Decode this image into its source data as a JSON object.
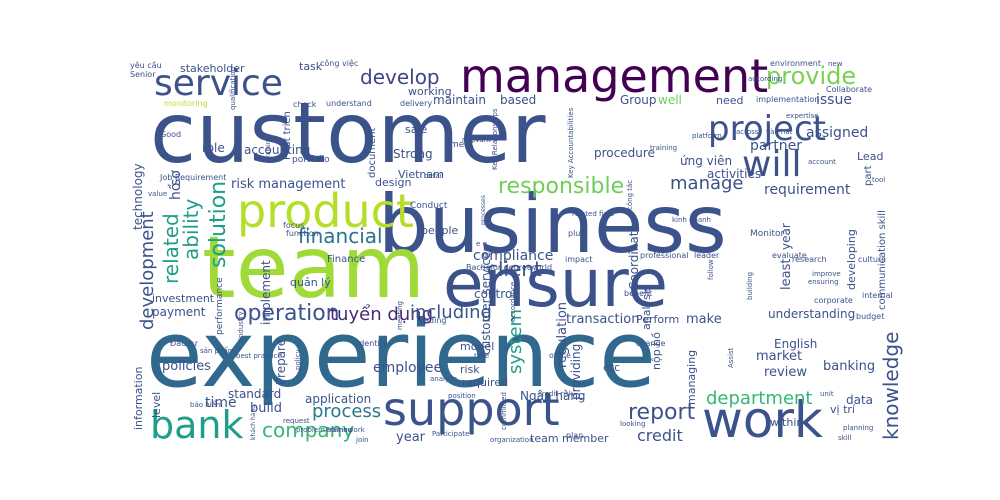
{
  "words": [
    {
      "text": "customer",
      "color": "#3b528b"
    },
    {
      "text": "experience",
      "color": "#31688e"
    },
    {
      "text": "business",
      "color": "#3b528b"
    },
    {
      "text": "team",
      "color": "#a0da39"
    },
    {
      "text": "ensure",
      "color": "#3b528b"
    },
    {
      "text": "management",
      "color": "#440154"
    },
    {
      "text": "product",
      "color": "#b5de2b"
    },
    {
      "text": "support",
      "color": "#3b528b"
    },
    {
      "text": "work",
      "color": "#3b528b"
    },
    {
      "text": "service",
      "color": "#3b528b"
    },
    {
      "text": "project",
      "color": "#3b528b"
    },
    {
      "text": "will",
      "color": "#3b528b"
    },
    {
      "text": "bank",
      "color": "#1f9e89"
    },
    {
      "text": "provide",
      "color": "#7ad151"
    },
    {
      "text": "develop",
      "color": "#414487"
    },
    {
      "text": "responsible",
      "color": "#6ece58"
    },
    {
      "text": "company",
      "color": "#35b779"
    },
    {
      "text": "operation",
      "color": "#3b528b"
    },
    {
      "text": "financial",
      "color": "#2c728e"
    },
    {
      "text": "report",
      "color": "#3b528b"
    },
    {
      "text": "department",
      "color": "#35b779"
    },
    {
      "text": "manage",
      "color": "#3b528b"
    },
    {
      "text": "client",
      "color": "#3b528b"
    },
    {
      "text": "solution",
      "color": "#1f9e89"
    },
    {
      "text": "ability",
      "color": "#1f9e89"
    },
    {
      "text": "related",
      "color": "#1f9e89"
    },
    {
      "text": "knowledge",
      "color": "#3b528b"
    },
    {
      "text": "development",
      "color": "#3b528b"
    },
    {
      "text": "process",
      "color": "#2a788e"
    },
    {
      "text": "system",
      "color": "#1f9e89"
    },
    {
      "text": "tuyển dụng",
      "color": "#482878"
    },
    {
      "text": "including",
      "color": "#3b528b"
    },
    {
      "text": "credit",
      "color": "#3b528b"
    },
    {
      "text": "requirement",
      "color": "#3b528b"
    },
    {
      "text": "employee",
      "color": "#3b528b"
    },
    {
      "text": "risk management",
      "color": "#3b528b"
    },
    {
      "text": "time",
      "color": "#3b528b"
    },
    {
      "text": "year",
      "color": "#3b528b"
    },
    {
      "text": "build",
      "color": "#3b528b"
    },
    {
      "text": "partner",
      "color": "#3b528b"
    },
    {
      "text": "assigned",
      "color": "#3b528b"
    },
    {
      "text": "issue",
      "color": "#3b528b"
    },
    {
      "text": "compliance",
      "color": "#3b528b"
    },
    {
      "text": "transaction",
      "color": "#3b528b"
    },
    {
      "text": "make",
      "color": "#3b528b"
    },
    {
      "text": "review",
      "color": "#3b528b"
    },
    {
      "text": "market",
      "color": "#3b528b"
    },
    {
      "text": "banking",
      "color": "#3b528b"
    },
    {
      "text": "policies",
      "color": "#3b528b"
    },
    {
      "text": "technology",
      "color": "#3b528b"
    },
    {
      "text": "accounting",
      "color": "#3b528b"
    },
    {
      "text": "investment",
      "color": "#3b528b"
    },
    {
      "text": "payment",
      "color": "#3b528b"
    },
    {
      "text": "information",
      "color": "#3b528b"
    },
    {
      "text": "role",
      "color": "#3b528b"
    },
    {
      "text": "Strong",
      "color": "#3b528b"
    },
    {
      "text": "procedure",
      "color": "#3b528b"
    },
    {
      "text": "activities",
      "color": "#3b528b"
    },
    {
      "text": "maintain",
      "color": "#3b528b"
    },
    {
      "text": "based",
      "color": "#3b528b"
    },
    {
      "text": "Group",
      "color": "#3b528b"
    },
    {
      "text": "well",
      "color": "#6ece58"
    },
    {
      "text": "need",
      "color": "#3b528b"
    },
    {
      "text": "working",
      "color": "#3b528b"
    },
    {
      "text": "stakeholder",
      "color": "#3b528b"
    },
    {
      "text": "task",
      "color": "#3b528b"
    },
    {
      "text": "sale",
      "color": "#3b528b"
    },
    {
      "text": "ứng viên",
      "color": "#3b528b"
    },
    {
      "text": "Lead",
      "color": "#3b528b"
    },
    {
      "text": "design",
      "color": "#3b528b"
    },
    {
      "text": "implement",
      "color": "#3b528b"
    },
    {
      "text": "quản lý",
      "color": "#3b528b"
    },
    {
      "text": "people",
      "color": "#3b528b"
    },
    {
      "text": "control",
      "color": "#3b528b"
    },
    {
      "text": "Perform",
      "color": "#3b528b"
    },
    {
      "text": "understanding",
      "color": "#3b528b"
    },
    {
      "text": "English",
      "color": "#3b528b"
    },
    {
      "text": "Ngân hàng",
      "color": "#3b528b"
    },
    {
      "text": "team member",
      "color": "#3b528b"
    },
    {
      "text": "standard",
      "color": "#3b528b"
    },
    {
      "text": "application",
      "color": "#3b528b"
    },
    {
      "text": "level",
      "color": "#3b528b"
    },
    {
      "text": "within",
      "color": "#3b528b"
    },
    {
      "text": "vị trí",
      "color": "#3b528b"
    },
    {
      "text": "data",
      "color": "#3b528b"
    },
    {
      "text": "etc",
      "color": "#3b528b"
    },
    {
      "text": "required",
      "color": "#3b528b"
    },
    {
      "text": "risk",
      "color": "#3b528b"
    },
    {
      "text": "model",
      "color": "#3b528b"
    },
    {
      "text": "regulation",
      "color": "#3b528b"
    },
    {
      "text": "customer service",
      "color": "#3b528b"
    },
    {
      "text": "Coordinate",
      "color": "#3b528b"
    },
    {
      "text": "Prepare",
      "color": "#3b528b"
    },
    {
      "text": "providing",
      "color": "#3b528b"
    },
    {
      "text": "analysis",
      "color": "#3b528b"
    },
    {
      "text": "managing",
      "color": "#3b528b"
    },
    {
      "text": "least",
      "color": "#3b528b"
    },
    {
      "text": "developing",
      "color": "#3b528b"
    },
    {
      "text": "communication skill",
      "color": "#3b528b"
    },
    {
      "text": "Vietnam",
      "color": "#3b528b"
    },
    {
      "text": "document",
      "color": "#3b528b"
    },
    {
      "text": "Phát triển",
      "color": "#3b528b"
    },
    {
      "text": "performance",
      "color": "#3b528b"
    },
    {
      "text": "nộp hồ",
      "color": "#3b528b"
    },
    {
      "text": "hồ",
      "color": "#3b528b"
    },
    {
      "text": "sơ",
      "color": "#3b528b"
    },
    {
      "text": "part",
      "color": "#3b528b"
    },
    {
      "text": "Finance",
      "color": "#3b528b"
    },
    {
      "text": "Conduct",
      "color": "#3b528b"
    },
    {
      "text": "portfolio",
      "color": "#3b528b"
    },
    {
      "text": "meet",
      "color": "#3b528b"
    },
    {
      "text": "Monitor",
      "color": "#3b528b"
    },
    {
      "text": "yêu cầu",
      "color": "#3b528b"
    },
    {
      "text": "Senior",
      "color": "#3b528b"
    },
    {
      "text": "công việc",
      "color": "#3b528b"
    },
    {
      "text": "check",
      "color": "#3b528b"
    },
    {
      "text": "understand",
      "color": "#3b528b"
    },
    {
      "text": "delivery",
      "color": "#3b528b"
    },
    {
      "text": "platform",
      "color": "#3b528b"
    },
    {
      "text": "environment",
      "color": "#3b528b"
    },
    {
      "text": "Collaborate",
      "color": "#3b528b"
    },
    {
      "text": "implementation",
      "color": "#3b528b"
    },
    {
      "text": "expertise",
      "color": "#3b528b"
    },
    {
      "text": "across",
      "color": "#3b528b"
    },
    {
      "text": "và Phát",
      "color": "#3b528b"
    },
    {
      "text": "Key Accountabilities",
      "color": "#3b528b"
    },
    {
      "text": "Responsibilities",
      "color": "#3b528b"
    },
    {
      "text": "monitoring",
      "color": "#3b528b"
    },
    {
      "text": "Job Requirement",
      "color": "#3b528b"
    },
    {
      "text": "Key Relationships",
      "color": "#3b528b"
    },
    {
      "text": "processes",
      "color": "#3b528b"
    },
    {
      "text": "related field",
      "color": "#3b528b"
    },
    {
      "text": "công tác",
      "color": "#3b528b"
    },
    {
      "text": "kinh doanh",
      "color": "#3b528b"
    },
    {
      "text": "research",
      "color": "#3b528b"
    },
    {
      "text": "professional",
      "color": "#3b528b"
    },
    {
      "text": "leader",
      "color": "#3b528b"
    },
    {
      "text": "evaluate",
      "color": "#3b528b"
    },
    {
      "text": "culture",
      "color": "#3b528b"
    },
    {
      "text": "follow",
      "color": "#3b528b"
    },
    {
      "text": "internal",
      "color": "#3b528b"
    },
    {
      "text": "corporate",
      "color": "#3b528b"
    },
    {
      "text": "building",
      "color": "#3b528b"
    },
    {
      "text": "benefit",
      "color": "#3b528b"
    },
    {
      "text": "impact",
      "color": "#3b528b"
    },
    {
      "text": "plus",
      "color": "#3b528b"
    },
    {
      "text": "world",
      "color": "#3b528b"
    },
    {
      "text": "Bachelor degree",
      "color": "#3b528b"
    },
    {
      "text": "meeting",
      "color": "#3b528b"
    },
    {
      "text": "function",
      "color": "#3b528b"
    },
    {
      "text": "focus",
      "color": "#3b528b"
    },
    {
      "text": "industry",
      "color": "#3b528b"
    },
    {
      "text": "value",
      "color": "#3b528b"
    },
    {
      "text": "Good",
      "color": "#3b528b"
    },
    {
      "text": "Đầu tư",
      "color": "#3b528b"
    },
    {
      "text": "sản phẩm",
      "color": "#3b528b"
    },
    {
      "text": "best practice",
      "color": "#3b528b"
    },
    {
      "text": "policy",
      "color": "#3b528b"
    },
    {
      "text": "identify",
      "color": "#3b528b"
    },
    {
      "text": "leading",
      "color": "#3b528b"
    },
    {
      "text": "take",
      "color": "#3b528b"
    },
    {
      "text": "office",
      "color": "#3b528b"
    },
    {
      "text": "change",
      "color": "#3b528b"
    },
    {
      "text": "Assist",
      "color": "#3b528b"
    },
    {
      "text": "budget",
      "color": "#3b528b"
    },
    {
      "text": "accordance",
      "color": "#3b528b"
    },
    {
      "text": "committed",
      "color": "#3b528b"
    },
    {
      "text": "credit risk",
      "color": "#3b528b"
    },
    {
      "text": "looking",
      "color": "#3b528b"
    },
    {
      "text": "planning",
      "color": "#3b528b"
    },
    {
      "text": "skill",
      "color": "#3b528b"
    },
    {
      "text": "unit",
      "color": "#3b528b"
    },
    {
      "text": "analyze",
      "color": "#3b528b"
    },
    {
      "text": "bảo hiểm",
      "color": "#3b528b"
    },
    {
      "text": "request",
      "color": "#3b528b"
    },
    {
      "text": "problem solving",
      "color": "#3b528b"
    },
    {
      "text": "Framework",
      "color": "#3b528b"
    },
    {
      "text": "khách hàng",
      "color": "#3b528b"
    },
    {
      "text": "join",
      "color": "#3b528b"
    },
    {
      "text": "Participate",
      "color": "#3b528b"
    },
    {
      "text": "organization",
      "color": "#3b528b"
    },
    {
      "text": "position",
      "color": "#3b528b"
    },
    {
      "text": "ensuring",
      "color": "#3b528b"
    },
    {
      "text": "improve",
      "color": "#3b528b"
    },
    {
      "text": "qualification",
      "color": "#3b528b"
    },
    {
      "text": "training",
      "color": "#3b528b"
    },
    {
      "text": "relevant",
      "color": "#3b528b"
    },
    {
      "text": "according",
      "color": "#3b528b"
    },
    {
      "text": "new",
      "color": "#3b528b"
    },
    {
      "text": "account",
      "color": "#3b528b"
    },
    {
      "text": "tool",
      "color": "#3b528b"
    },
    {
      "text": "e g",
      "color": "#3b528b"
    },
    {
      "text": "plan",
      "color": "#3b528b"
    },
    {
      "text": "detail",
      "color": "#3b528b"
    }
  ]
}
